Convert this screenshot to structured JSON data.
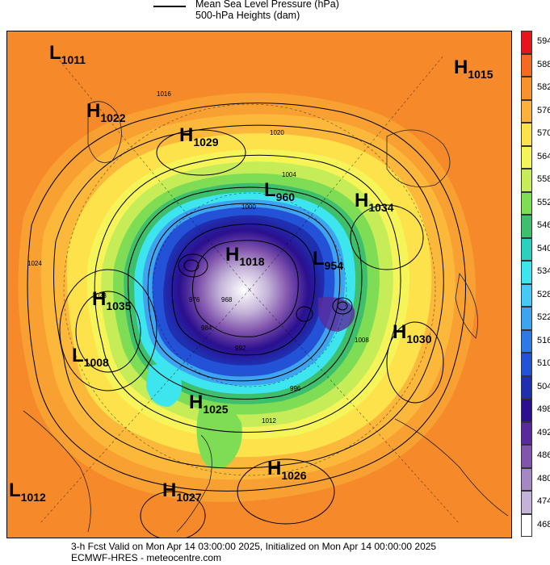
{
  "legend": {
    "line1": "Mean Sea Level Pressure (hPa)",
    "line2": "500-hPa Heights (dam)"
  },
  "pressure_centers": [
    {
      "type": "L",
      "value": "1011"
    },
    {
      "type": "H",
      "value": "1022"
    },
    {
      "type": "H",
      "value": "1029"
    },
    {
      "type": "H",
      "value": "1015"
    },
    {
      "type": "L",
      "value": "960"
    },
    {
      "type": "H",
      "value": "1034"
    },
    {
      "type": "H",
      "value": "1018"
    },
    {
      "type": "L",
      "value": "954"
    },
    {
      "type": "H",
      "value": "1035"
    },
    {
      "type": "H",
      "value": "1030"
    },
    {
      "type": "L",
      "value": "1008"
    },
    {
      "type": "H",
      "value": "1025"
    },
    {
      "type": "H",
      "value": "1026"
    },
    {
      "type": "H",
      "value": "1027"
    },
    {
      "type": "L",
      "value": "1012"
    }
  ],
  "isobar_labels": [
    "1016",
    "1020",
    "1024",
    "1028",
    "1004",
    "1000",
    "996",
    "992",
    "984",
    "976",
    "968",
    "1012",
    "1008"
  ],
  "colorbar": {
    "labels": [
      "594",
      "588",
      "582",
      "576",
      "570",
      "564",
      "558",
      "552",
      "546",
      "540",
      "534",
      "528",
      "522",
      "516",
      "510",
      "504",
      "498",
      "492",
      "486",
      "480",
      "474",
      "468"
    ],
    "colors": [
      "#e8141c",
      "#f46a20",
      "#f8932c",
      "#fbb13a",
      "#fde24c",
      "#f5f559",
      "#c6ec58",
      "#7edd55",
      "#3dbf6b",
      "#2bd0c0",
      "#3de6ee",
      "#46c9f7",
      "#3ea4f2",
      "#2f78e8",
      "#2452d6",
      "#1e2fb0",
      "#2b0f8f",
      "#5a2a9c",
      "#8255ad",
      "#a487c3",
      "#c4b3d8",
      "#ffffff"
    ]
  },
  "footer": {
    "line1": "3-h Fcst Valid on Mon Apr 14 03:00:00 2025, Initialized on Mon Apr 14 00:00:00 2025",
    "line2": "ECMWF-HRES - meteocentre.com"
  }
}
